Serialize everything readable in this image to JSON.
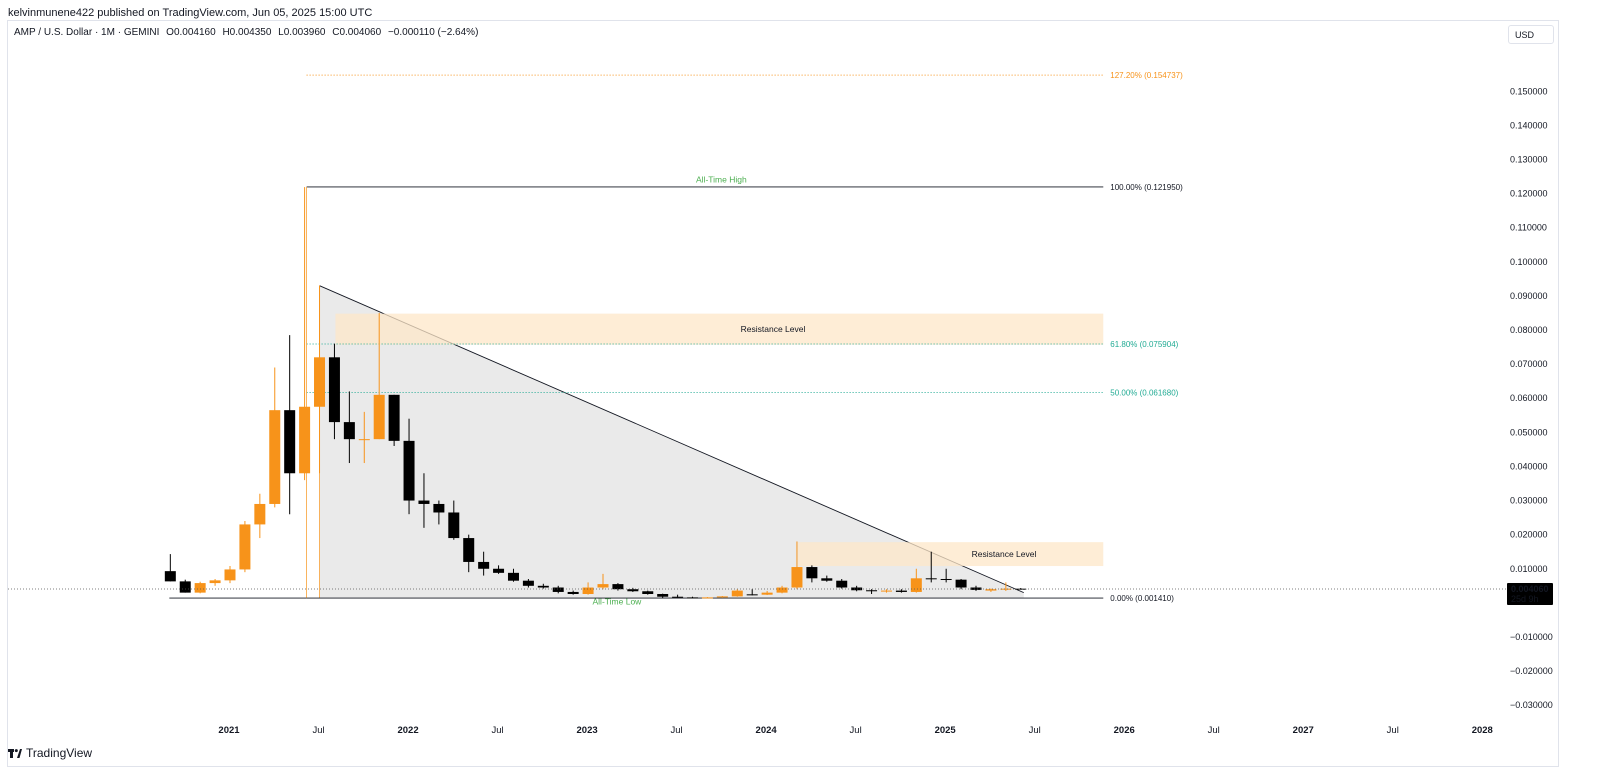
{
  "header": {
    "published_by": "kelvinmunene422 published on TradingView.com, Jun 05, 2025 15:00 UTC"
  },
  "legend": {
    "symbol": "AMP / U.S. Dollar · 1M · GEMINI",
    "open": "O0.004160",
    "high": "H0.004350",
    "low": "L0.003960",
    "close": "C0.004060",
    "change": "−0.000110 (−2.64%)"
  },
  "currency": "USD",
  "footer": {
    "logo_text": "TradingView"
  },
  "colors": {
    "up": "#f7931a",
    "down": "#000000",
    "fib_top": "#f7931a",
    "fib_green": "#22ab94",
    "zone": "#fde7c8",
    "triangle": "#e6e6e6",
    "annotation_green": "#4caf50"
  },
  "chart_data": {
    "type": "candlestick",
    "interval": "1M",
    "ylim": [
      -0.032,
      0.158
    ],
    "y_ticks": [
      {
        "v": 0.15,
        "label": "0.150000"
      },
      {
        "v": 0.14,
        "label": "0.140000"
      },
      {
        "v": 0.13,
        "label": "0.130000"
      },
      {
        "v": 0.12,
        "label": "0.120000"
      },
      {
        "v": 0.11,
        "label": "0.110000"
      },
      {
        "v": 0.1,
        "label": "0.100000"
      },
      {
        "v": 0.09,
        "label": "0.090000"
      },
      {
        "v": 0.08,
        "label": "0.080000"
      },
      {
        "v": 0.07,
        "label": "0.070000"
      },
      {
        "v": 0.06,
        "label": "0.060000"
      },
      {
        "v": 0.05,
        "label": "0.050000"
      },
      {
        "v": 0.04,
        "label": "0.040000"
      },
      {
        "v": 0.03,
        "label": "0.030000"
      },
      {
        "v": 0.02,
        "label": "0.020000"
      },
      {
        "v": 0.01,
        "label": "0.010000"
      },
      {
        "v": -0.01,
        "label": "−0.010000"
      },
      {
        "v": -0.02,
        "label": "−0.020000"
      },
      {
        "v": -0.03,
        "label": "−0.030000"
      }
    ],
    "x_ticks": [
      {
        "date": "2021-01",
        "label": "2021",
        "major": true
      },
      {
        "date": "2021-07",
        "label": "Jul",
        "major": false
      },
      {
        "date": "2022-01",
        "label": "2022",
        "major": true
      },
      {
        "date": "2022-07",
        "label": "Jul",
        "major": false
      },
      {
        "date": "2023-01",
        "label": "2023",
        "major": true
      },
      {
        "date": "2023-07",
        "label": "Jul",
        "major": false
      },
      {
        "date": "2024-01",
        "label": "2024",
        "major": true
      },
      {
        "date": "2024-07",
        "label": "Jul",
        "major": false
      },
      {
        "date": "2025-01",
        "label": "2025",
        "major": true
      },
      {
        "date": "2025-07",
        "label": "Jul",
        "major": false
      },
      {
        "date": "2026-01",
        "label": "2026",
        "major": true
      },
      {
        "date": "2026-07",
        "label": "Jul",
        "major": false
      },
      {
        "date": "2027-01",
        "label": "2027",
        "major": true
      },
      {
        "date": "2027-07",
        "label": "Jul",
        "major": false
      },
      {
        "date": "2028-01",
        "label": "2028",
        "major": true
      }
    ],
    "candles": [
      {
        "date": "2020-09",
        "o": 0.0093,
        "h": 0.0143,
        "l": 0.0063,
        "c": 0.0063
      },
      {
        "date": "2020-10",
        "o": 0.0063,
        "h": 0.0068,
        "l": 0.003,
        "c": 0.003
      },
      {
        "date": "2020-11",
        "o": 0.003,
        "h": 0.0062,
        "l": 0.0028,
        "c": 0.0058
      },
      {
        "date": "2020-12",
        "o": 0.0058,
        "h": 0.007,
        "l": 0.005,
        "c": 0.0066
      },
      {
        "date": "2021-01",
        "o": 0.0066,
        "h": 0.0108,
        "l": 0.0058,
        "c": 0.0098
      },
      {
        "date": "2021-02",
        "o": 0.0098,
        "h": 0.024,
        "l": 0.009,
        "c": 0.023
      },
      {
        "date": "2021-03",
        "o": 0.023,
        "h": 0.032,
        "l": 0.019,
        "c": 0.029
      },
      {
        "date": "2021-04",
        "o": 0.029,
        "h": 0.069,
        "l": 0.028,
        "c": 0.0565
      },
      {
        "date": "2021-05",
        "o": 0.0565,
        "h": 0.0785,
        "l": 0.026,
        "c": 0.038
      },
      {
        "date": "2021-06",
        "o": 0.038,
        "h": 0.1219,
        "l": 0.036,
        "c": 0.0575
      },
      {
        "date": "2021-07",
        "o": 0.0575,
        "h": 0.093,
        "l": 0.038,
        "c": 0.072
      },
      {
        "date": "2021-08",
        "o": 0.072,
        "h": 0.076,
        "l": 0.048,
        "c": 0.053
      },
      {
        "date": "2021-09",
        "o": 0.053,
        "h": 0.062,
        "l": 0.041,
        "c": 0.048
      },
      {
        "date": "2021-10",
        "o": 0.048,
        "h": 0.056,
        "l": 0.041,
        "c": 0.048
      },
      {
        "date": "2021-11",
        "o": 0.048,
        "h": 0.085,
        "l": 0.048,
        "c": 0.061
      },
      {
        "date": "2021-12",
        "o": 0.061,
        "h": 0.061,
        "l": 0.046,
        "c": 0.0475
      },
      {
        "date": "2022-01",
        "o": 0.0475,
        "h": 0.054,
        "l": 0.026,
        "c": 0.03
      },
      {
        "date": "2022-02",
        "o": 0.03,
        "h": 0.038,
        "l": 0.022,
        "c": 0.029
      },
      {
        "date": "2022-03",
        "o": 0.029,
        "h": 0.03,
        "l": 0.023,
        "c": 0.0265
      },
      {
        "date": "2022-04",
        "o": 0.0265,
        "h": 0.03,
        "l": 0.0185,
        "c": 0.019
      },
      {
        "date": "2022-05",
        "o": 0.019,
        "h": 0.02,
        "l": 0.009,
        "c": 0.012
      },
      {
        "date": "2022-06",
        "o": 0.012,
        "h": 0.015,
        "l": 0.008,
        "c": 0.01
      },
      {
        "date": "2022-07",
        "o": 0.01,
        "h": 0.011,
        "l": 0.0085,
        "c": 0.0088
      },
      {
        "date": "2022-08",
        "o": 0.0088,
        "h": 0.01,
        "l": 0.0062,
        "c": 0.0065
      },
      {
        "date": "2022-09",
        "o": 0.0065,
        "h": 0.007,
        "l": 0.0045,
        "c": 0.005
      },
      {
        "date": "2022-10",
        "o": 0.005,
        "h": 0.0056,
        "l": 0.0042,
        "c": 0.0045
      },
      {
        "date": "2022-11",
        "o": 0.0045,
        "h": 0.005,
        "l": 0.0028,
        "c": 0.0032
      },
      {
        "date": "2022-12",
        "o": 0.0032,
        "h": 0.0036,
        "l": 0.0024,
        "c": 0.0026
      },
      {
        "date": "2023-01",
        "o": 0.0026,
        "h": 0.006,
        "l": 0.0024,
        "c": 0.0045
      },
      {
        "date": "2023-02",
        "o": 0.0045,
        "h": 0.0085,
        "l": 0.004,
        "c": 0.0055
      },
      {
        "date": "2023-03",
        "o": 0.0055,
        "h": 0.0058,
        "l": 0.0036,
        "c": 0.004
      },
      {
        "date": "2023-04",
        "o": 0.004,
        "h": 0.0044,
        "l": 0.0032,
        "c": 0.0034
      },
      {
        "date": "2023-05",
        "o": 0.0034,
        "h": 0.0036,
        "l": 0.0024,
        "c": 0.0026
      },
      {
        "date": "2023-06",
        "o": 0.0026,
        "h": 0.0027,
        "l": 0.0014,
        "c": 0.0018
      },
      {
        "date": "2023-07",
        "o": 0.0018,
        "h": 0.0024,
        "l": 0.0015,
        "c": 0.0016
      },
      {
        "date": "2023-08",
        "o": 0.0016,
        "h": 0.0018,
        "l": 0.0014,
        "c": 0.0015
      },
      {
        "date": "2023-09",
        "o": 0.0015,
        "h": 0.0017,
        "l": 0.0014,
        "c": 0.0016
      },
      {
        "date": "2023-10",
        "o": 0.0016,
        "h": 0.002,
        "l": 0.0015,
        "c": 0.0019
      },
      {
        "date": "2023-11",
        "o": 0.0019,
        "h": 0.004,
        "l": 0.0018,
        "c": 0.0036
      },
      {
        "date": "2023-12",
        "o": 0.0025,
        "h": 0.004,
        "l": 0.0022,
        "c": 0.0024
      },
      {
        "date": "2024-01",
        "o": 0.0024,
        "h": 0.0035,
        "l": 0.0023,
        "c": 0.003
      },
      {
        "date": "2024-02",
        "o": 0.003,
        "h": 0.005,
        "l": 0.0028,
        "c": 0.0045
      },
      {
        "date": "2024-03",
        "o": 0.0045,
        "h": 0.018,
        "l": 0.004,
        "c": 0.0105
      },
      {
        "date": "2024-04",
        "o": 0.0105,
        "h": 0.011,
        "l": 0.006,
        "c": 0.0072
      },
      {
        "date": "2024-05",
        "o": 0.0072,
        "h": 0.008,
        "l": 0.0062,
        "c": 0.0065
      },
      {
        "date": "2024-06",
        "o": 0.0065,
        "h": 0.007,
        "l": 0.0042,
        "c": 0.0045
      },
      {
        "date": "2024-07",
        "o": 0.0045,
        "h": 0.005,
        "l": 0.0034,
        "c": 0.0037
      },
      {
        "date": "2024-08",
        "o": 0.0037,
        "h": 0.004,
        "l": 0.0026,
        "c": 0.0034
      },
      {
        "date": "2024-09",
        "o": 0.0034,
        "h": 0.004,
        "l": 0.003,
        "c": 0.0036
      },
      {
        "date": "2024-10",
        "o": 0.0036,
        "h": 0.004,
        "l": 0.003,
        "c": 0.0032
      },
      {
        "date": "2024-11",
        "o": 0.0032,
        "h": 0.01,
        "l": 0.003,
        "c": 0.0072
      },
      {
        "date": "2024-12",
        "o": 0.0072,
        "h": 0.015,
        "l": 0.006,
        "c": 0.007
      },
      {
        "date": "2025-01",
        "o": 0.007,
        "h": 0.01,
        "l": 0.006,
        "c": 0.0068
      },
      {
        "date": "2025-02",
        "o": 0.0068,
        "h": 0.007,
        "l": 0.004,
        "c": 0.0045
      },
      {
        "date": "2025-03",
        "o": 0.0045,
        "h": 0.005,
        "l": 0.0035,
        "c": 0.0038
      },
      {
        "date": "2025-04",
        "o": 0.0036,
        "h": 0.0042,
        "l": 0.0032,
        "c": 0.004
      },
      {
        "date": "2025-05",
        "o": 0.004,
        "h": 0.006,
        "l": 0.0035,
        "c": 0.00416
      },
      {
        "date": "2025-06",
        "o": 0.00416,
        "h": 0.00435,
        "l": 0.00396,
        "c": 0.00406
      }
    ],
    "fib_levels": [
      {
        "ratio": "127.20%",
        "value": 0.154737,
        "label": "127.20% (0.154737)",
        "color": "#f7931a",
        "style": "dotted"
      },
      {
        "ratio": "100.00%",
        "value": 0.12195,
        "label": "100.00% (0.121950)",
        "color": "#131722",
        "style": "solid"
      },
      {
        "ratio": "61.80%",
        "value": 0.075904,
        "label": "61.80% (0.075904)",
        "color": "#22ab94",
        "style": "dotted"
      },
      {
        "ratio": "50.00%",
        "value": 0.06168,
        "label": "50.00% (0.061680)",
        "color": "#22ab94",
        "style": "dotted"
      },
      {
        "ratio": "0.00%",
        "value": 0.00141,
        "label": "0.00% (0.001410)",
        "color": "#131722",
        "style": "solid"
      }
    ],
    "fib_start_date": "2021-06",
    "fib_end_date": "2025-12",
    "zones": [
      {
        "label": "Resistance Level",
        "y_low": 0.0757,
        "y_high": 0.0848,
        "from": "2021-08",
        "to": "2025-12"
      },
      {
        "label": "Resistance Level",
        "y_low": 0.0108,
        "y_high": 0.0178,
        "from": "2024-03",
        "to": "2025-12"
      }
    ],
    "triangle": {
      "apex_date": "2021-07",
      "apex_value": 0.093,
      "end_date": "2025-06",
      "end_value": 0.003,
      "base_value": 0.00141
    },
    "annotations": [
      {
        "text": "All-Time High",
        "date": "2023-10",
        "value": 0.1232
      },
      {
        "text": "All-Time Low",
        "date": "2023-03",
        "value": -0.0005
      }
    ],
    "ath_line": {
      "from": "2020-09",
      "value": 0.00141
    },
    "current_price": {
      "value": 0.00406,
      "label": "0.004060",
      "countdown": "25d 9h"
    }
  }
}
